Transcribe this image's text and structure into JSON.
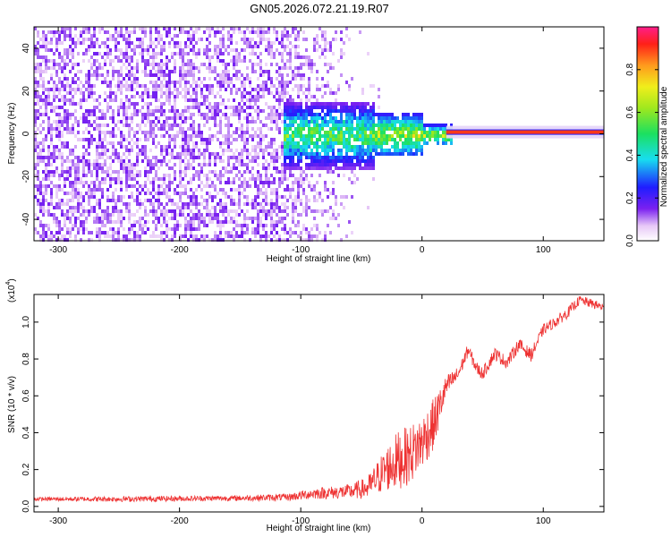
{
  "title": "GN05.2026.072.21.19.R07",
  "colors": {
    "snr_line": "#ee3333",
    "spectrogram_noise": "#6f2df0",
    "ridge": "#e81a12"
  },
  "chart_data": [
    {
      "type": "heatmap",
      "name": "spectrogram",
      "xlabel": "Height of straight line (km)",
      "ylabel": "Frequency (Hz)",
      "xlim": [
        -320,
        150
      ],
      "ylim": [
        -50,
        50
      ],
      "xticks": [
        -300,
        -200,
        -100,
        0,
        100
      ],
      "xtick_labels": [
        "-300",
        "-200",
        "-100",
        "0",
        "100"
      ],
      "yticks": [
        -40,
        -20,
        0,
        20,
        40
      ],
      "ytick_labels": [
        "-40",
        "-20",
        "0",
        "20",
        "40"
      ],
      "ridge": {
        "frequency_hz": 0.8,
        "start_height_km": 20,
        "end_height_km": 150,
        "peak_amplitude": 0.95
      },
      "noise_region": {
        "from_height_km": -320,
        "to_height_km": -50,
        "amplitude_range": [
          0.05,
          0.15
        ]
      },
      "transition_region": {
        "from_height_km": -110,
        "to_height_km": 20,
        "amplitude_range": [
          0.15,
          0.6
        ]
      },
      "colorbar": {
        "label": "Normalized spectral amplitude",
        "range": [
          0,
          1
        ],
        "ticks": [
          0.0,
          0.2,
          0.4,
          0.6,
          0.8
        ],
        "tick_labels": [
          "0.0",
          "0.2",
          "0.4",
          "0.6",
          "0.8"
        ]
      }
    },
    {
      "type": "line",
      "name": "snr",
      "xlabel": "Height of straight line (km)",
      "ylabel": "SNR (10 * v/v)",
      "y_multiplier_label": "(x10",
      "y_multiplier_exponent": "4",
      "y_multiplier_close": ")",
      "xlim": [
        -320,
        150
      ],
      "ylim": [
        -0.03,
        1.15
      ],
      "xticks": [
        -300,
        -200,
        -100,
        0,
        100
      ],
      "xtick_labels": [
        "-300",
        "-200",
        "-100",
        "0",
        "100"
      ],
      "yticks": [
        0.0,
        0.2,
        0.4,
        0.6,
        0.8,
        1.0
      ],
      "ytick_labels": [
        "0.0",
        "0.2",
        "0.4",
        "0.6",
        "0.8",
        "1.0"
      ],
      "series": [
        {
          "name": "SNR",
          "x": [
            -320,
            -250,
            -150,
            -110,
            -90,
            -60,
            -45,
            -30,
            -20,
            -10,
            0,
            10,
            20,
            30,
            38,
            45,
            50,
            60,
            70,
            80,
            90,
            100,
            110,
            120,
            130,
            140,
            150
          ],
          "y": [
            0.04,
            0.04,
            0.045,
            0.05,
            0.07,
            0.08,
            0.1,
            0.2,
            0.25,
            0.28,
            0.35,
            0.45,
            0.65,
            0.72,
            0.85,
            0.75,
            0.72,
            0.83,
            0.78,
            0.88,
            0.82,
            0.96,
            1.0,
            1.05,
            1.12,
            1.1,
            1.08
          ],
          "noise_amplitude": [
            0.01,
            0.015,
            0.015,
            0.02,
            0.03,
            0.04,
            0.06,
            0.12,
            0.16,
            0.16,
            0.15,
            0.14,
            0.06,
            0.04,
            0.035,
            0.035,
            0.035,
            0.035,
            0.035,
            0.035,
            0.035,
            0.03,
            0.03,
            0.03,
            0.025,
            0.025,
            0.025
          ]
        }
      ]
    }
  ]
}
